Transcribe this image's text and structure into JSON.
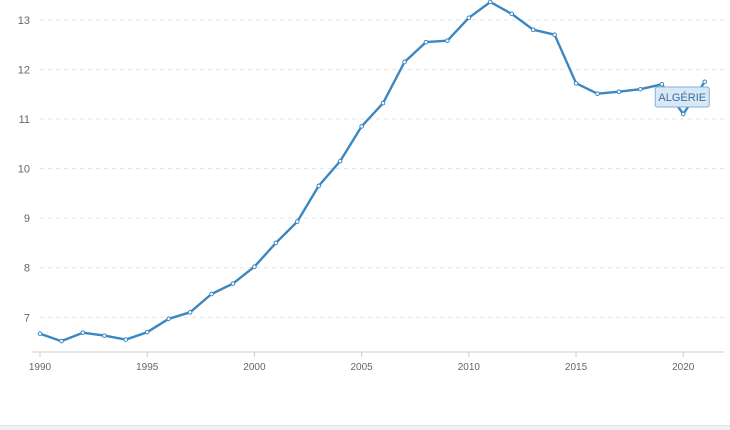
{
  "chart_data": {
    "type": "line",
    "x": [
      1990,
      1991,
      1992,
      1993,
      1994,
      1995,
      1996,
      1997,
      1998,
      1999,
      2000,
      2001,
      2002,
      2003,
      2004,
      2005,
      2006,
      2007,
      2008,
      2009,
      2010,
      2011,
      2012,
      2013,
      2014,
      2015,
      2016,
      2017,
      2018,
      2019,
      2020,
      2021
    ],
    "series": [
      {
        "name": "ALGÉRIE",
        "values": [
          6.67,
          6.52,
          6.69,
          6.63,
          6.55,
          6.7,
          6.97,
          7.1,
          7.47,
          7.68,
          8.02,
          8.5,
          8.93,
          9.65,
          10.15,
          10.85,
          11.32,
          12.15,
          12.55,
          12.58,
          13.04,
          13.36,
          13.12,
          12.8,
          12.7,
          11.72,
          11.51,
          11.55,
          11.6,
          11.7,
          11.1,
          11.75
        ],
        "color": "#3a87c2"
      }
    ],
    "xticks": [
      "1990",
      "1995",
      "2000",
      "2005",
      "2010",
      "2015",
      "2020"
    ],
    "yticks": [
      "7",
      "8",
      "9",
      "10",
      "11",
      "12",
      "13"
    ],
    "xlim": [
      1990,
      2021.9
    ],
    "ylim": [
      6.3,
      13.4
    ],
    "grid": true,
    "legend": "none",
    "tooltip": {
      "label": "ALGÉRIE",
      "year": 2020
    }
  }
}
